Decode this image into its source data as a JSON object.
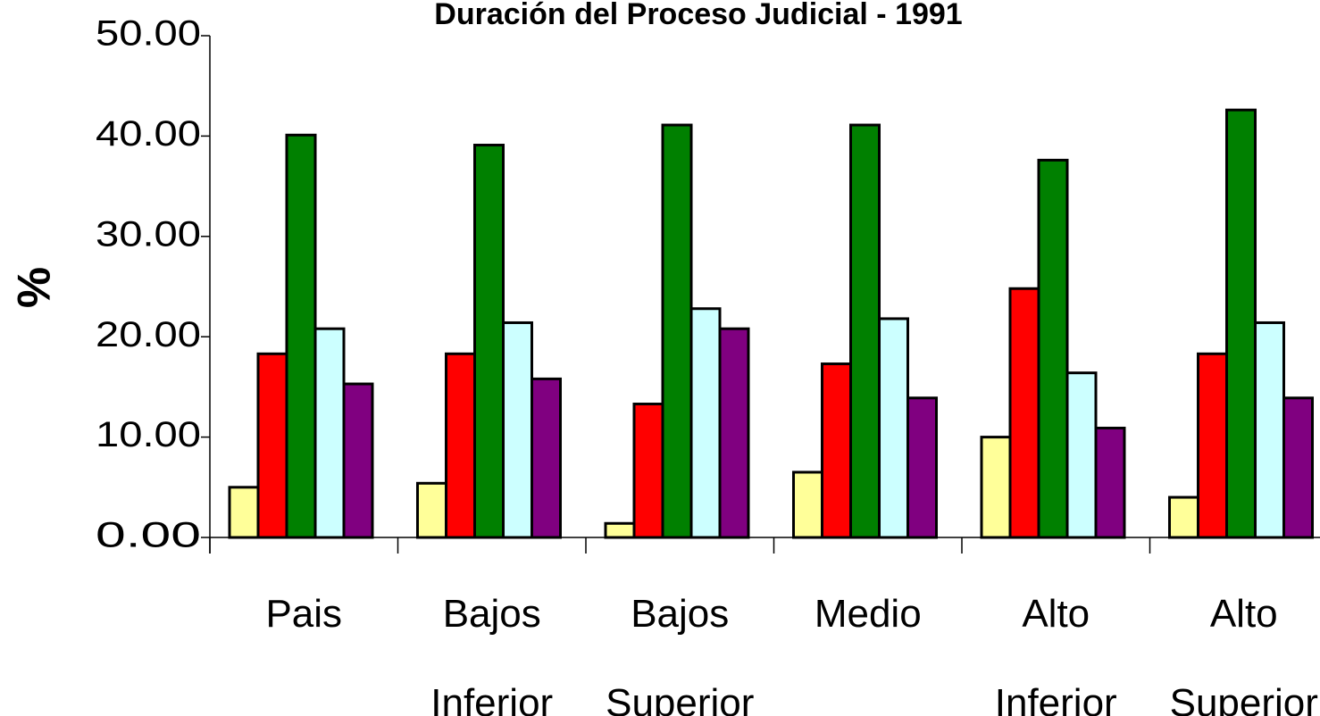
{
  "chart_data": {
    "type": "bar",
    "title": "Duración del Proceso Judicial - 1991",
    "y_label": "%",
    "categories": [
      "Pais",
      "Bajos Inferior",
      "Bajos Superior",
      "Medio",
      "Alto Inferior",
      "Alto Superior"
    ],
    "series": [
      {
        "color": "#ffff99",
        "values": [
          5.0,
          5.4,
          1.4,
          6.5,
          10.0,
          4.0
        ]
      },
      {
        "color": "#ff0000",
        "values": [
          18.3,
          18.3,
          13.3,
          17.3,
          24.8,
          18.3
        ]
      },
      {
        "color": "#008000",
        "values": [
          40.1,
          39.1,
          41.1,
          41.1,
          37.6,
          42.6
        ]
      },
      {
        "color": "#ccffff",
        "values": [
          20.8,
          21.4,
          22.8,
          21.8,
          16.4,
          21.4
        ]
      },
      {
        "color": "#800080",
        "values": [
          15.3,
          15.8,
          20.8,
          13.9,
          10.9,
          13.9
        ]
      }
    ],
    "ylim": [
      0,
      50
    ],
    "yticks": [
      {
        "value": 0,
        "label": "0.00"
      },
      {
        "value": 10,
        "label": "10.00"
      },
      {
        "value": 20,
        "label": "20.00"
      },
      {
        "value": 30,
        "label": "30.00"
      },
      {
        "value": 40,
        "label": "40.00"
      },
      {
        "value": 50,
        "label": "50.00"
      }
    ],
    "grid": false
  }
}
